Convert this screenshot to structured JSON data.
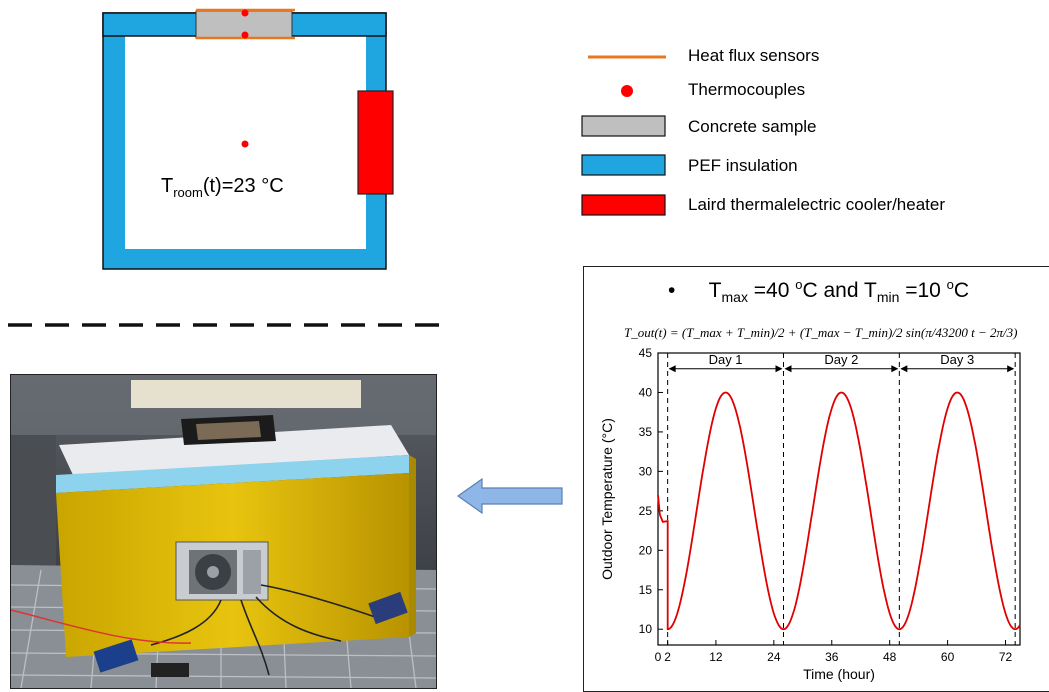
{
  "schematic": {
    "room_label": {
      "t": "T",
      "sub": "room",
      "rest": "(t)=23 °C"
    }
  },
  "legend": {
    "items": [
      {
        "label": "Heat flux sensors",
        "icon": "orange-line-icon",
        "color": "#E87722"
      },
      {
        "label": "Thermocouples",
        "icon": "red-dot-icon",
        "color": "#FF0000"
      },
      {
        "label": "Concrete sample",
        "icon": "gray-rect-icon",
        "color": "#BFBFBF"
      },
      {
        "label": "PEF insulation",
        "icon": "blue-rect-icon",
        "color": "#1FA5E0"
      },
      {
        "label": "Laird thermalelectric cooler/heater",
        "icon": "red-rect-icon",
        "color": "#FF0000"
      }
    ]
  },
  "colors": {
    "insulation": "#1FA5E0",
    "concrete": "#BFBFBF",
    "sensor": "#E87722",
    "thermocouple": "#FF0000",
    "cooler": "#FF0000",
    "arrow": "#5B9BD5",
    "curve": "#E00000"
  },
  "chart_header": {
    "bullet": "•",
    "tmax_t": "T",
    "tmax_sub": "max",
    "tmax_val": " =40 ",
    "deg1": "o",
    "c1": "C and ",
    "tmin_t": "T",
    "tmin_sub": "min",
    "tmin_val": " =10 ",
    "deg2": "o",
    "c2": "C",
    "formula": "T_out(t) = (T_max + T_min)/2 + (T_max − T_min)/2 sin(π/43200 t − 2π/3)"
  },
  "chart_data": {
    "type": "line",
    "xlabel": "Time (hour)",
    "ylabel": "Outdoor Temperature (°C)",
    "xlim": [
      0,
      75
    ],
    "ylim": [
      8,
      45
    ],
    "x_ticks": [
      0,
      2,
      12,
      24,
      36,
      48,
      60,
      72
    ],
    "x_tick_labels": [
      "0",
      "2",
      "12",
      "24",
      "36",
      "48",
      "60",
      "72"
    ],
    "y_ticks": [
      10,
      15,
      20,
      25,
      30,
      35,
      40,
      45
    ],
    "y_tick_labels": [
      "10",
      "15",
      "20",
      "25",
      "30",
      "35",
      "40",
      "45"
    ],
    "grid": false,
    "day_markers": [
      2,
      26,
      50,
      74
    ],
    "day_labels": [
      "Day 1",
      "Day 2",
      "Day 3"
    ],
    "series": [
      {
        "equation": "T = 25 + 15*sin(pi/43200 * (t_h*3600) - 2*pi/3)",
        "x_start": 2,
        "x_end": 75,
        "initial_points": [
          [
            0,
            27.0
          ],
          [
            0.4,
            24.5
          ],
          [
            1.0,
            23.6
          ],
          [
            2.0,
            23.7
          ]
        ]
      }
    ]
  }
}
